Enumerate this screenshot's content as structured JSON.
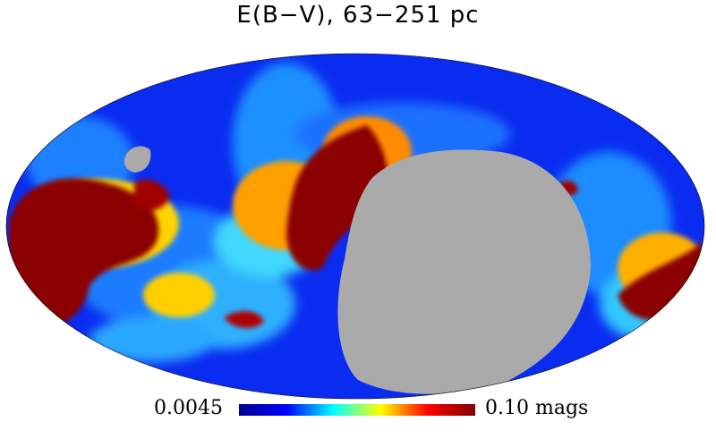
{
  "title": "E(B−V), 63−251 pc",
  "projection": "Mollweide all-sky",
  "colorbar": {
    "min_label": "0.0045",
    "max_label": "0.10 mags",
    "colormap": "jet",
    "stops": [
      "#00008f",
      "#0000ff",
      "#00ffff",
      "#ffff00",
      "#ff0000",
      "#800000"
    ]
  },
  "colors": {
    "masked": "#aaaaaa",
    "background": "#ffffff"
  }
}
